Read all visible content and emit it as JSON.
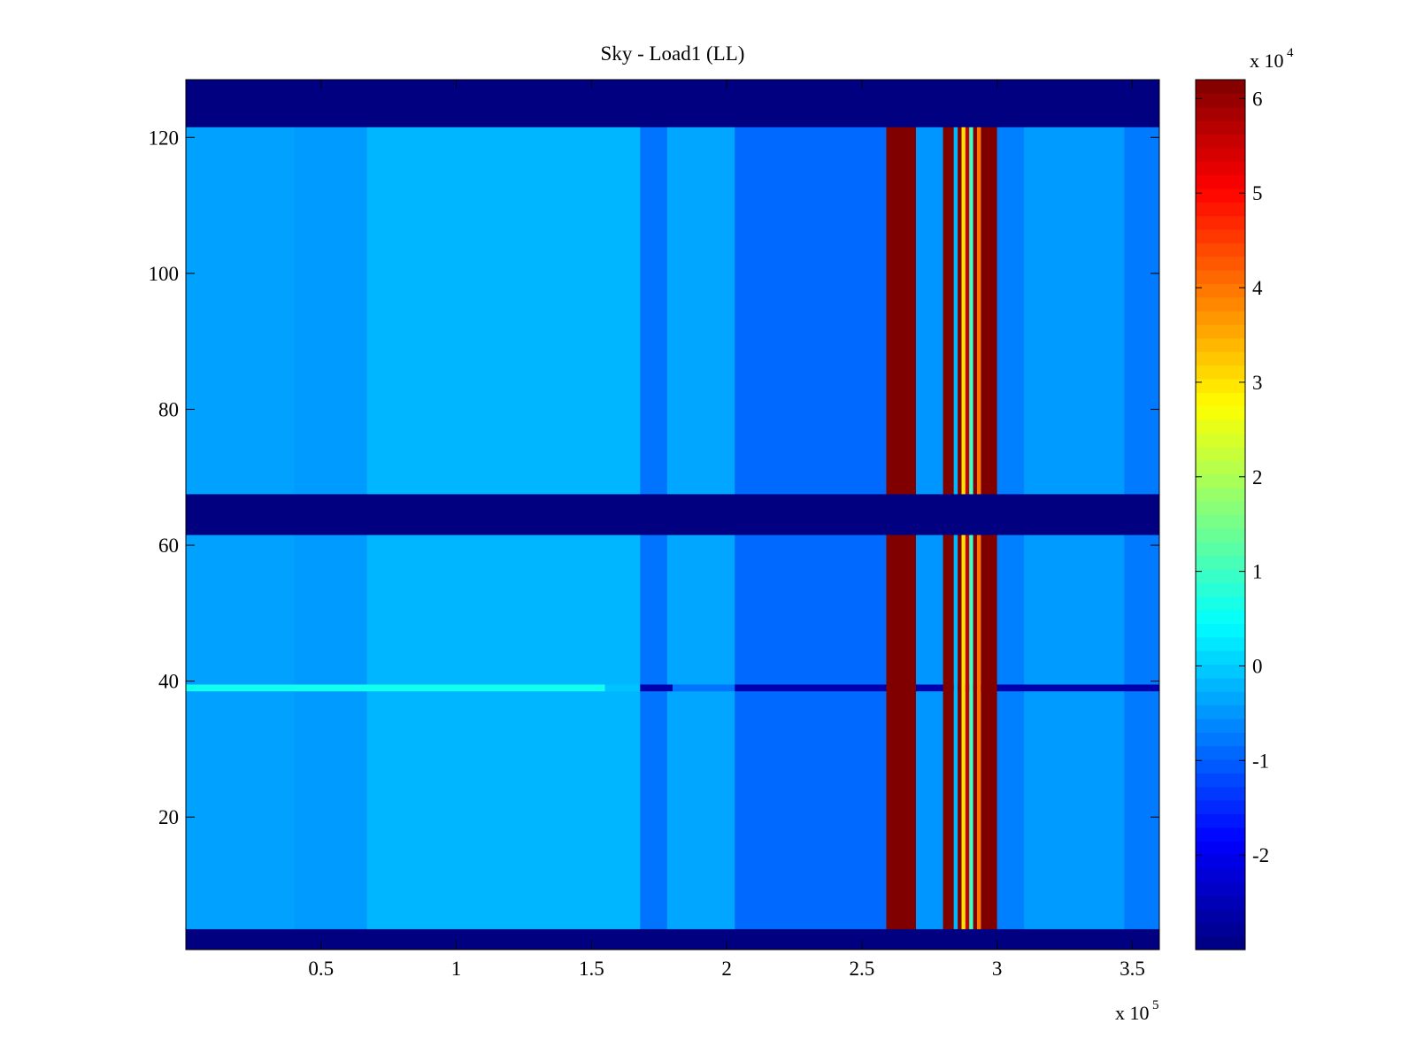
{
  "chart_data": {
    "type": "heatmap",
    "title": "Sky - Load1 (LL)",
    "xlabel": "",
    "ylabel": "",
    "x_multiplier": "x 10",
    "x_multiplier_exponent": "5",
    "xlim": [
      0,
      360000
    ],
    "ylim": [
      0.5,
      128.5
    ],
    "xticks": [
      50000,
      100000,
      150000,
      200000,
      250000,
      300000,
      350000
    ],
    "xtick_labels": [
      "0.5",
      "1",
      "1.5",
      "2",
      "2.5",
      "3",
      "3.5"
    ],
    "yticks": [
      20,
      40,
      60,
      80,
      100,
      120
    ],
    "ytick_labels": [
      "20",
      "40",
      "60",
      "80",
      "100",
      "120"
    ],
    "colormap": "jet",
    "colorbar": {
      "multiplier": "x 10",
      "multiplier_exponent": "4",
      "clim": [
        -30000,
        62000
      ],
      "ticks": [
        -20000,
        -10000,
        0,
        10000,
        20000,
        30000,
        40000,
        50000,
        60000
      ],
      "tick_labels": [
        "-2",
        "-1",
        "0",
        "1",
        "2",
        "3",
        "4",
        "5",
        "6"
      ]
    },
    "masked_rows_value": -30000,
    "masked_row_ranges": [
      [
        0.5,
        3.5
      ],
      [
        61.5,
        67.5
      ],
      [
        121.5,
        128.5
      ]
    ],
    "saturated_column_ranges": [
      {
        "x": [
          259000,
          270000
        ],
        "value": 62000
      },
      {
        "x": [
          280000,
          284000
        ],
        "value": 62000
      },
      {
        "x": [
          294000,
          300000
        ],
        "value": 62000
      }
    ],
    "striped_column_range": {
      "x": [
        284000,
        294000
      ],
      "values": [
        -2000,
        62000,
        30000,
        55000,
        10000,
        62000,
        40000
      ]
    },
    "background_level": -2500,
    "column_bands": [
      {
        "x": [
          0,
          40000
        ],
        "level": -4000
      },
      {
        "x": [
          40000,
          67000
        ],
        "level": -4500
      },
      {
        "x": [
          67000,
          168000
        ],
        "level": -2000
      },
      {
        "x": [
          168000,
          178000
        ],
        "level": -8000
      },
      {
        "x": [
          178000,
          203000
        ],
        "level": -3500
      },
      {
        "x": [
          203000,
          259000
        ],
        "level": -9000
      },
      {
        "x": [
          270000,
          280000
        ],
        "level": -5000
      },
      {
        "x": [
          300000,
          310000
        ],
        "level": -7000
      },
      {
        "x": [
          310000,
          347000
        ],
        "level": -4500
      },
      {
        "x": [
          347000,
          360000
        ],
        "level": -7500
      }
    ],
    "row_anomaly": {
      "row": 39,
      "values": [
        {
          "x": [
            0,
            155000
          ],
          "level": 6000
        },
        {
          "x": [
            155000,
            168000
          ],
          "level": -1000
        },
        {
          "x": [
            168000,
            180000
          ],
          "level": -26000
        },
        {
          "x": [
            180000,
            203000
          ],
          "level": -8000
        },
        {
          "x": [
            203000,
            360000
          ],
          "level": -26000
        }
      ]
    }
  }
}
